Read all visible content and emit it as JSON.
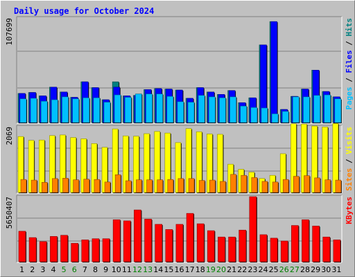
{
  "chart_data": [
    {
      "type": "bar",
      "title": "Daily usage for October 2024",
      "categories": [
        "1",
        "2",
        "3",
        "4",
        "5",
        "6",
        "7",
        "8",
        "9",
        "10",
        "11",
        "12",
        "13",
        "14",
        "15",
        "16",
        "17",
        "18",
        "19",
        "20",
        "21",
        "22",
        "23",
        "24",
        "25",
        "26",
        "27",
        "28",
        "29",
        "30",
        "31"
      ],
      "weekend_days": [
        "5",
        "6",
        "12",
        "13",
        "19",
        "20",
        "26",
        "27"
      ],
      "ylabel_max": "107699",
      "ylim": [
        0,
        107699
      ],
      "grid": true,
      "side_label": [
        {
          "text": "Pages",
          "color": "#00c0ff"
        },
        {
          "text": " / ",
          "color": "#000000"
        },
        {
          "text": "Files",
          "color": "#0000ff"
        },
        {
          "text": " / ",
          "color": "#000000"
        },
        {
          "text": "Hits",
          "color": "#008080"
        }
      ],
      "series": [
        {
          "name": "Hits",
          "color": "#008080",
          "values": [
            30000,
            31000,
            27500,
            36500,
            31500,
            26000,
            42000,
            36000,
            23500,
            42000,
            27500,
            28000,
            34000,
            35000,
            34500,
            33500,
            25000,
            36000,
            31500,
            29000,
            33000,
            20500,
            25500,
            80000,
            104000,
            13500,
            27000,
            34500,
            54000,
            32000,
            26500
          ]
        },
        {
          "name": "Files",
          "color": "#0000ff",
          "values": [
            30000,
            31000,
            27500,
            36500,
            31500,
            26000,
            42000,
            36000,
            23500,
            36500,
            27500,
            28000,
            34000,
            35000,
            34500,
            33500,
            25000,
            36000,
            31500,
            29000,
            33000,
            20500,
            25500,
            80000,
            104000,
            13500,
            27000,
            34500,
            54000,
            32000,
            26500
          ]
        },
        {
          "name": "Pages",
          "color": "#00c0ff",
          "values": [
            24500,
            25000,
            22000,
            23500,
            26500,
            24500,
            25500,
            25500,
            21000,
            28500,
            26000,
            29500,
            29500,
            29500,
            27000,
            21500,
            21000,
            28000,
            26500,
            25500,
            26500,
            17000,
            15500,
            15000,
            9000,
            11500,
            26500,
            26500,
            28000,
            28500,
            24500
          ]
        }
      ]
    },
    {
      "type": "bar",
      "categories": [
        "1",
        "2",
        "3",
        "4",
        "5",
        "6",
        "7",
        "8",
        "9",
        "10",
        "11",
        "12",
        "13",
        "14",
        "15",
        "16",
        "17",
        "18",
        "19",
        "20",
        "21",
        "22",
        "23",
        "24",
        "25",
        "26",
        "27",
        "28",
        "29",
        "30",
        "31"
      ],
      "ylabel_max": "2069",
      "ylim": [
        0,
        2069
      ],
      "grid": true,
      "side_label": [
        {
          "text": "Sites",
          "color": "#ff8000"
        },
        {
          "text": " / ",
          "color": "#000000"
        },
        {
          "text": "Visits",
          "color": "#ffff00"
        }
      ],
      "series": [
        {
          "name": "Visits",
          "color": "#ffff00",
          "values": [
            1760,
            1640,
            1650,
            1790,
            1810,
            1730,
            1690,
            1540,
            1420,
            2000,
            1780,
            1770,
            1850,
            1920,
            1870,
            1570,
            2010,
            1910,
            1840,
            1830,
            890,
            730,
            640,
            440,
            540,
            1220,
            2160,
            2150,
            2090,
            2060,
            2170
          ]
        },
        {
          "name": "Sites",
          "color": "#ff8000",
          "values": [
            410,
            390,
            320,
            440,
            450,
            400,
            420,
            410,
            330,
            560,
            370,
            400,
            400,
            400,
            410,
            440,
            440,
            380,
            390,
            350,
            570,
            540,
            470,
            350,
            330,
            410,
            510,
            530,
            460,
            400,
            390
          ]
        }
      ]
    },
    {
      "type": "bar",
      "categories": [
        "1",
        "2",
        "3",
        "4",
        "5",
        "6",
        "7",
        "8",
        "9",
        "10",
        "11",
        "12",
        "13",
        "14",
        "15",
        "16",
        "17",
        "18",
        "19",
        "20",
        "21",
        "22",
        "23",
        "24",
        "25",
        "26",
        "27",
        "28",
        "29",
        "30",
        "31"
      ],
      "ylabel_max": "5650407",
      "ylim": [
        0,
        5650407
      ],
      "grid": true,
      "side_label": [
        {
          "text": "KBytes",
          "color": "#ff0000"
        }
      ],
      "series": [
        {
          "name": "KBytes",
          "color": "#ff0000",
          "values": [
            2650000,
            2100000,
            1750000,
            2200000,
            2300000,
            1600000,
            1900000,
            2000000,
            2000000,
            3650000,
            3550000,
            4500000,
            3700000,
            3250000,
            2800000,
            3250000,
            4200000,
            3300000,
            2700000,
            2150000,
            2150000,
            2750000,
            5650407,
            2350000,
            2050000,
            1800000,
            3150000,
            3650000,
            3100000,
            2150000,
            1900000
          ]
        }
      ]
    }
  ]
}
